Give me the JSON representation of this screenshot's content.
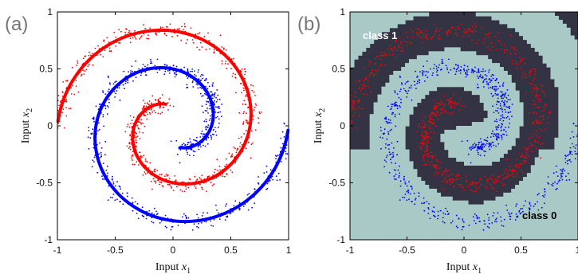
{
  "chart_data": [
    {
      "type": "scatter",
      "panel_label": "(a)",
      "xlabel_text": "Input ",
      "xlabel_var": "x",
      "xlabel_sub": "1",
      "ylabel_text": "Input ",
      "ylabel_var": "x",
      "ylabel_sub": "2",
      "xlim": [
        -1,
        1
      ],
      "ylim": [
        -1,
        1
      ],
      "xticks": [
        "-1",
        "-0.5",
        "0",
        "0.5",
        "1"
      ],
      "yticks": [
        "-1",
        "-0.5",
        "0",
        "0.5",
        "1"
      ],
      "grid": false,
      "series": [
        {
          "color": "#ff0000",
          "style": "points + curve",
          "curve_from": [
            0.2,
            -0.1
          ],
          "curve_to": [
            1.0,
            0.0
          ]
        },
        {
          "color": "#0000ff",
          "style": "points + curve",
          "curve_from": [
            -0.2,
            0.1
          ],
          "curve_to": [
            -1.0,
            0.0
          ]
        }
      ]
    },
    {
      "type": "scatter",
      "panel_label": "(b)",
      "xlabel_text": "Input ",
      "xlabel_var": "x",
      "xlabel_sub": "1",
      "ylabel_text": "Input ",
      "ylabel_var": "x",
      "ylabel_sub": "2",
      "xlim": [
        -1,
        1
      ],
      "ylim": [
        -1,
        1
      ],
      "xticks": [
        "-1",
        "-0.5",
        "0",
        "0.5",
        "1"
      ],
      "yticks": [
        "-1",
        "-0.5",
        "0",
        "0.5",
        "1"
      ],
      "grid": false,
      "background_regions": [
        {
          "label": "class 1",
          "color": "#333344"
        },
        {
          "label": "class 0",
          "color": "#a8c9c6"
        }
      ],
      "series": [
        {
          "color": "#ff0000",
          "style": "points"
        },
        {
          "color": "#0000ff",
          "style": "points"
        }
      ]
    }
  ]
}
